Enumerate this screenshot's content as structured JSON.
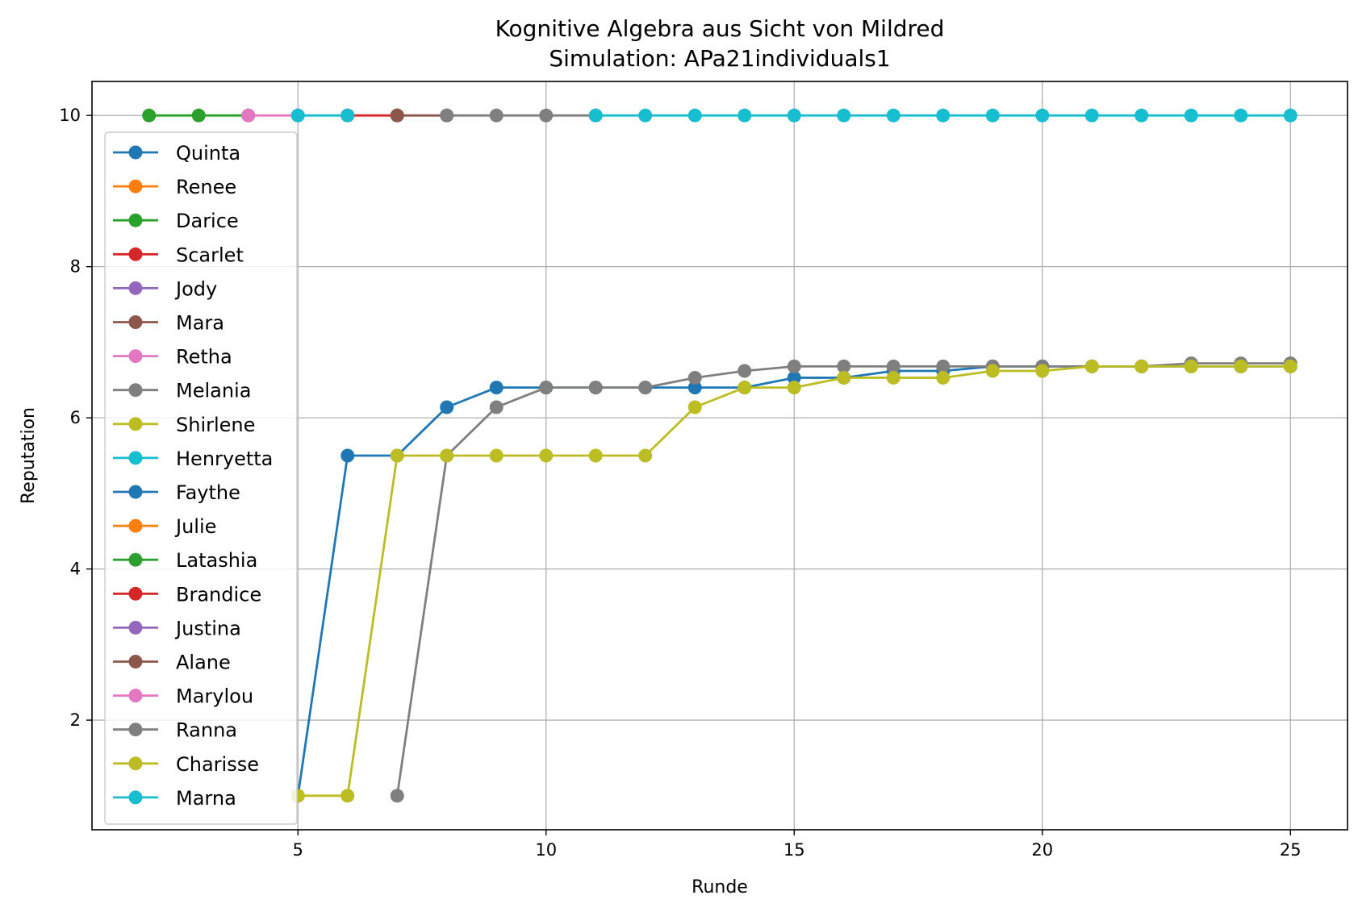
{
  "chart_data": {
    "type": "line",
    "title": "Kognitive Algebra aus Sicht von Mildred",
    "subtitle": "Simulation: APa21individuals1",
    "xlabel": "Runde",
    "ylabel": "Reputation",
    "xlim": [
      0.85,
      26.15
    ],
    "ylim": [
      0.55,
      10.45
    ],
    "xticks": [
      5,
      10,
      15,
      20,
      25
    ],
    "yticks": [
      2,
      4,
      6,
      8,
      10
    ],
    "grid": true,
    "legend_position": "left",
    "series": [
      {
        "name": "Quinta",
        "color": "#1f77b4",
        "points": []
      },
      {
        "name": "Renee",
        "color": "#ff7f0e",
        "points": []
      },
      {
        "name": "Darice",
        "color": "#2ca02c",
        "points": [
          [
            2,
            10
          ],
          [
            3,
            10
          ],
          [
            4,
            10
          ]
        ]
      },
      {
        "name": "Scarlet",
        "color": "#d62728",
        "points": [
          [
            6,
            10
          ],
          [
            7,
            10
          ]
        ]
      },
      {
        "name": "Jody",
        "color": "#9467bd",
        "points": []
      },
      {
        "name": "Mara",
        "color": "#8c564b",
        "points": [
          [
            7,
            10
          ],
          [
            8,
            10
          ]
        ]
      },
      {
        "name": "Retha",
        "color": "#e377c2",
        "points": [
          [
            4,
            10
          ],
          [
            5,
            10
          ]
        ]
      },
      {
        "name": "Melania",
        "color": "#7f7f7f",
        "points": [
          [
            8,
            10
          ],
          [
            9,
            10
          ],
          [
            10,
            10
          ],
          [
            11,
            10
          ]
        ]
      },
      {
        "name": "Shirlene",
        "color": "#bcbd22",
        "points": []
      },
      {
        "name": "Henryetta",
        "color": "#17becf",
        "points": [
          [
            5,
            10
          ],
          [
            6,
            10
          ]
        ]
      },
      {
        "name": "Faythe",
        "color": "#1f77b4",
        "points": [
          [
            5,
            1.0
          ],
          [
            6,
            5.5
          ],
          [
            7,
            5.5
          ],
          [
            8,
            6.14
          ],
          [
            9,
            6.4
          ],
          [
            10,
            6.4
          ],
          [
            11,
            6.4
          ],
          [
            12,
            6.4
          ],
          [
            13,
            6.4
          ],
          [
            14,
            6.4
          ],
          [
            15,
            6.53
          ],
          [
            16,
            6.53
          ],
          [
            17,
            6.62
          ],
          [
            18,
            6.62
          ],
          [
            19,
            6.68
          ],
          [
            20,
            6.68
          ],
          [
            21,
            6.68
          ],
          [
            22,
            6.68
          ],
          [
            23,
            6.68
          ],
          [
            24,
            6.68
          ],
          [
            25,
            6.68
          ]
        ]
      },
      {
        "name": "Julie",
        "color": "#ff7f0e",
        "points": []
      },
      {
        "name": "Latashia",
        "color": "#2ca02c",
        "points": []
      },
      {
        "name": "Brandice",
        "color": "#d62728",
        "points": []
      },
      {
        "name": "Justina",
        "color": "#9467bd",
        "points": []
      },
      {
        "name": "Alane",
        "color": "#8c564b",
        "points": []
      },
      {
        "name": "Marylou",
        "color": "#e377c2",
        "points": []
      },
      {
        "name": "Ranna",
        "color": "#7f7f7f",
        "points": [
          [
            7,
            1.0
          ],
          [
            8,
            5.5
          ],
          [
            9,
            6.14
          ],
          [
            10,
            6.4
          ],
          [
            11,
            6.4
          ],
          [
            12,
            6.4
          ],
          [
            13,
            6.53
          ],
          [
            14,
            6.62
          ],
          [
            15,
            6.68
          ],
          [
            16,
            6.68
          ],
          [
            17,
            6.68
          ],
          [
            18,
            6.68
          ],
          [
            19,
            6.68
          ],
          [
            20,
            6.68
          ],
          [
            21,
            6.68
          ],
          [
            22,
            6.68
          ],
          [
            23,
            6.72
          ],
          [
            24,
            6.72
          ],
          [
            25,
            6.72
          ]
        ]
      },
      {
        "name": "Charisse",
        "color": "#bcbd22",
        "points": [
          [
            5,
            1.0
          ],
          [
            6,
            1.0
          ],
          [
            7,
            5.5
          ],
          [
            8,
            5.5
          ],
          [
            9,
            5.5
          ],
          [
            10,
            5.5
          ],
          [
            11,
            5.5
          ],
          [
            12,
            5.5
          ],
          [
            13,
            6.14
          ],
          [
            14,
            6.4
          ],
          [
            15,
            6.4
          ],
          [
            16,
            6.53
          ],
          [
            17,
            6.53
          ],
          [
            18,
            6.53
          ],
          [
            19,
            6.62
          ],
          [
            20,
            6.62
          ],
          [
            21,
            6.68
          ],
          [
            22,
            6.68
          ],
          [
            23,
            6.68
          ],
          [
            24,
            6.68
          ],
          [
            25,
            6.68
          ]
        ]
      },
      {
        "name": "Marna",
        "color": "#17becf",
        "points": [
          [
            11,
            10
          ],
          [
            12,
            10
          ],
          [
            13,
            10
          ],
          [
            14,
            10
          ],
          [
            15,
            10
          ],
          [
            16,
            10
          ],
          [
            17,
            10
          ],
          [
            18,
            10
          ],
          [
            19,
            10
          ],
          [
            20,
            10
          ],
          [
            21,
            10
          ],
          [
            22,
            10
          ],
          [
            23,
            10
          ],
          [
            24,
            10
          ],
          [
            25,
            10
          ]
        ]
      }
    ]
  }
}
